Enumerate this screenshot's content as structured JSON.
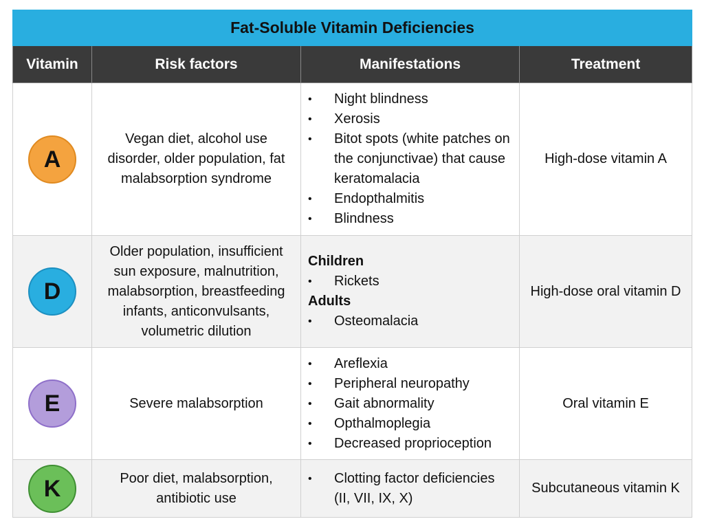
{
  "title": "Fat-Soluble Vitamin Deficiencies",
  "header": [
    "Vitamin",
    "Risk factors",
    "Manifestations",
    "Treatment"
  ],
  "rows": [
    {
      "vitamin": "A",
      "risk_factors": "Vegan diet, alcohol use disorder, older population, fat malabsorption syndrome",
      "manifestations": [
        {
          "items": [
            "Night blindness",
            "Xerosis",
            "Bitot spots (white patches on the conjunctivae) that cause keratomalacia",
            "Endopthalmitis",
            "Blindness"
          ]
        }
      ],
      "treatment": "High-dose vitamin A"
    },
    {
      "vitamin": "D",
      "risk_factors": "Older population, insufficient sun exposure, malnutrition, malabsorption, breastfeeding infants, anticonvulsants, volumetric dilution",
      "manifestations": [
        {
          "heading": "Children",
          "items": [
            "Rickets"
          ]
        },
        {
          "heading": "Adults",
          "items": [
            "Osteomalacia"
          ]
        }
      ],
      "treatment": "High-dose oral vitamin D"
    },
    {
      "vitamin": "E",
      "risk_factors": "Severe malabsorption",
      "manifestations": [
        {
          "items": [
            "Areflexia",
            "Peripheral neuropathy",
            "Gait abnormality",
            "Opthalmoplegia",
            "Decreased proprioception"
          ]
        }
      ],
      "treatment": "Oral vitamin E"
    },
    {
      "vitamin": "K",
      "risk_factors": "Poor diet, malabsorption, antibiotic use",
      "manifestations": [
        {
          "items": [
            "Clotting factor deficiencies (II, VII, IX, X)"
          ]
        }
      ],
      "treatment": "Subcutaneous vitamin K"
    }
  ]
}
